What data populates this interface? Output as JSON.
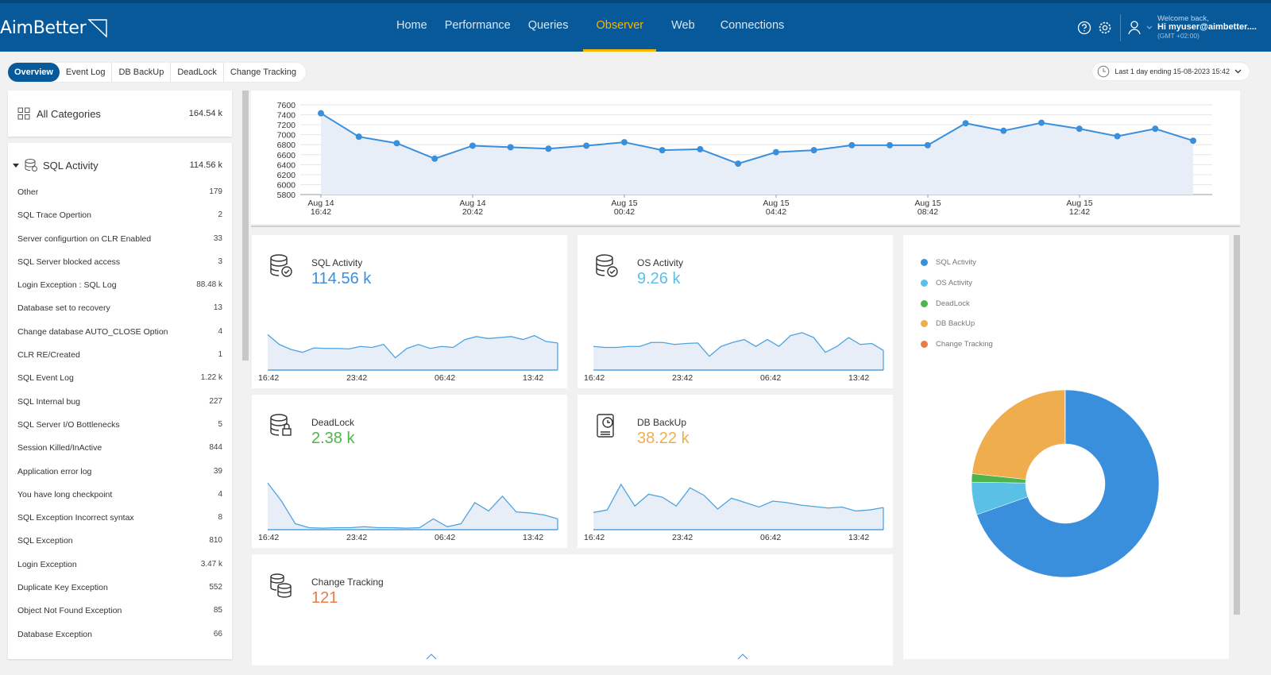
{
  "topbar": {
    "logo": "AimBetter",
    "nav": [
      "Home",
      "Performance",
      "Queries",
      "Observer",
      "Web",
      "Connections"
    ],
    "active_nav": "Observer",
    "icons": [
      "help-icon",
      "settings-icon",
      "user-icon"
    ],
    "user": {
      "welcome": "Welcome back,",
      "name": "Hi myuser@aimbetter....",
      "tz": "(GMT +02:00)"
    }
  },
  "tabs": [
    "Overview",
    "Event Log",
    "DB BackUp",
    "DeadLock",
    "Change Tracking"
  ],
  "active_tab": "Overview",
  "timerange": "Last 1 day ending  15-08-2023 15:42",
  "sidebar": {
    "all": {
      "label": "All Categories",
      "value": "164.54 k"
    },
    "group": {
      "label": "SQL Activity",
      "value": "114.56 k"
    },
    "items": [
      {
        "label": "Other",
        "value": "179"
      },
      {
        "label": "SQL Trace Opertion",
        "value": "2"
      },
      {
        "label": "Server configurtion on CLR Enabled",
        "value": "33"
      },
      {
        "label": "SQL Server blocked access",
        "value": "3"
      },
      {
        "label": "Login Exception : SQL Log",
        "value": "88.48 k"
      },
      {
        "label": "Database set to recovery",
        "value": "13"
      },
      {
        "label": "Change database AUTO_CLOSE Option",
        "value": "4"
      },
      {
        "label": "CLR RE/Created",
        "value": "1"
      },
      {
        "label": "SQL Event Log",
        "value": "1.22 k"
      },
      {
        "label": "SQL Internal bug",
        "value": "227"
      },
      {
        "label": "SQL Server I/O Bottlenecks",
        "value": "5"
      },
      {
        "label": "Session Killed/InActive",
        "value": "844"
      },
      {
        "label": "Application error log",
        "value": "39"
      },
      {
        "label": "You have long checkpoint",
        "value": "4"
      },
      {
        "label": "SQL Exception Incorrect syntax",
        "value": "8"
      },
      {
        "label": "SQL Exception",
        "value": "810"
      },
      {
        "label": "Login Exception",
        "value": "3.47 k"
      },
      {
        "label": "Duplicate Key Exception",
        "value": "552"
      },
      {
        "label": "Object Not Found Exception",
        "value": "85"
      },
      {
        "label": "Database Exception",
        "value": "66"
      }
    ]
  },
  "chart_data": [
    {
      "type": "area",
      "ylim": [
        5800,
        7600
      ],
      "yticks": [
        5800,
        6000,
        6200,
        6400,
        6600,
        6800,
        7000,
        7200,
        7400,
        7600
      ],
      "xtick_labels": [
        [
          "Aug 14",
          "16:42"
        ],
        [
          "Aug 14",
          "20:42"
        ],
        [
          "Aug 15",
          "00:42"
        ],
        [
          "Aug 15",
          "04:42"
        ],
        [
          "Aug 15",
          "08:42"
        ],
        [
          "Aug 15",
          "12:42"
        ]
      ],
      "values": [
        7430,
        6960,
        6830,
        6520,
        6780,
        6750,
        6720,
        6780,
        6850,
        6690,
        6710,
        6420,
        6650,
        6690,
        6790,
        6790,
        6790,
        7230,
        7080,
        7240,
        7120,
        6970,
        7120,
        6880
      ],
      "color": "#3a8fdc"
    },
    {
      "type": "area",
      "title": "SQL Activity",
      "xtick_labels": [
        "16:42",
        "23:42",
        "06:42",
        "13:42"
      ],
      "values": [
        0.72,
        0.52,
        0.42,
        0.36,
        0.45,
        0.44,
        0.44,
        0.43,
        0.48,
        0.46,
        0.52,
        0.25,
        0.44,
        0.52,
        0.44,
        0.48,
        0.46,
        0.62,
        0.68,
        0.64,
        0.66,
        0.68,
        0.62,
        0.7,
        0.58,
        0.55
      ]
    },
    {
      "type": "area",
      "title": "OS Activity",
      "xtick_labels": [
        "16:42",
        "23:42",
        "06:42",
        "13:42"
      ],
      "values": [
        0.48,
        0.46,
        0.46,
        0.48,
        0.48,
        0.56,
        0.56,
        0.52,
        0.54,
        0.55,
        0.28,
        0.48,
        0.56,
        0.62,
        0.48,
        0.62,
        0.48,
        0.7,
        0.76,
        0.66,
        0.36,
        0.48,
        0.66,
        0.52,
        0.54,
        0.4
      ]
    },
    {
      "type": "area",
      "title": "DeadLock",
      "xtick_labels": [
        "16:42",
        "23:42",
        "06:42",
        "13:42"
      ],
      "values": [
        0.95,
        0.58,
        0.12,
        0.04,
        0.03,
        0.04,
        0.04,
        0.06,
        0.04,
        0.04,
        0.03,
        0.04,
        0.22,
        0.06,
        0.12,
        0.55,
        0.38,
        0.68,
        0.36,
        0.34,
        0.3,
        0.22
      ]
    },
    {
      "type": "area",
      "title": "DB BackUp",
      "xtick_labels": [
        "16:42",
        "23:42",
        "06:42",
        "13:42"
      ],
      "values": [
        0.35,
        0.4,
        0.92,
        0.48,
        0.72,
        0.66,
        0.48,
        0.85,
        0.7,
        0.42,
        0.64,
        0.55,
        0.46,
        0.58,
        0.55,
        0.5,
        0.47,
        0.44,
        0.46,
        0.38,
        0.4,
        0.45
      ]
    },
    {
      "type": "pie",
      "categories": [
        "SQL Activity",
        "OS Activity",
        "DeadLock",
        "DB BackUp",
        "Change Tracking"
      ],
      "values": [
        114.56,
        9.26,
        2.38,
        38.22,
        0.121
      ],
      "colors": [
        "#3a8fdc",
        "#5bc0e6",
        "#4db54c",
        "#f0ad4e",
        "#e97d47"
      ]
    }
  ],
  "stats": [
    {
      "title": "SQL Activity",
      "value": "114.56 k",
      "color": "#3a8fdc",
      "icon": "database-check-icon"
    },
    {
      "title": "OS Activity",
      "value": "9.26 k",
      "color": "#5bc0e6",
      "icon": "database-check-icon"
    },
    {
      "title": "DeadLock",
      "value": "2.38 k",
      "color": "#4db54c",
      "icon": "database-lock-icon"
    },
    {
      "title": "DB BackUp",
      "value": "38.22 k",
      "color": "#f0ad4e",
      "icon": "backup-icon"
    },
    {
      "title": "Change Tracking",
      "value": "121",
      "color": "#e97d47",
      "icon": "database-sync-icon"
    }
  ],
  "legend": [
    "SQL Activity",
    "OS Activity",
    "DeadLock",
    "DB BackUp",
    "Change Tracking"
  ]
}
